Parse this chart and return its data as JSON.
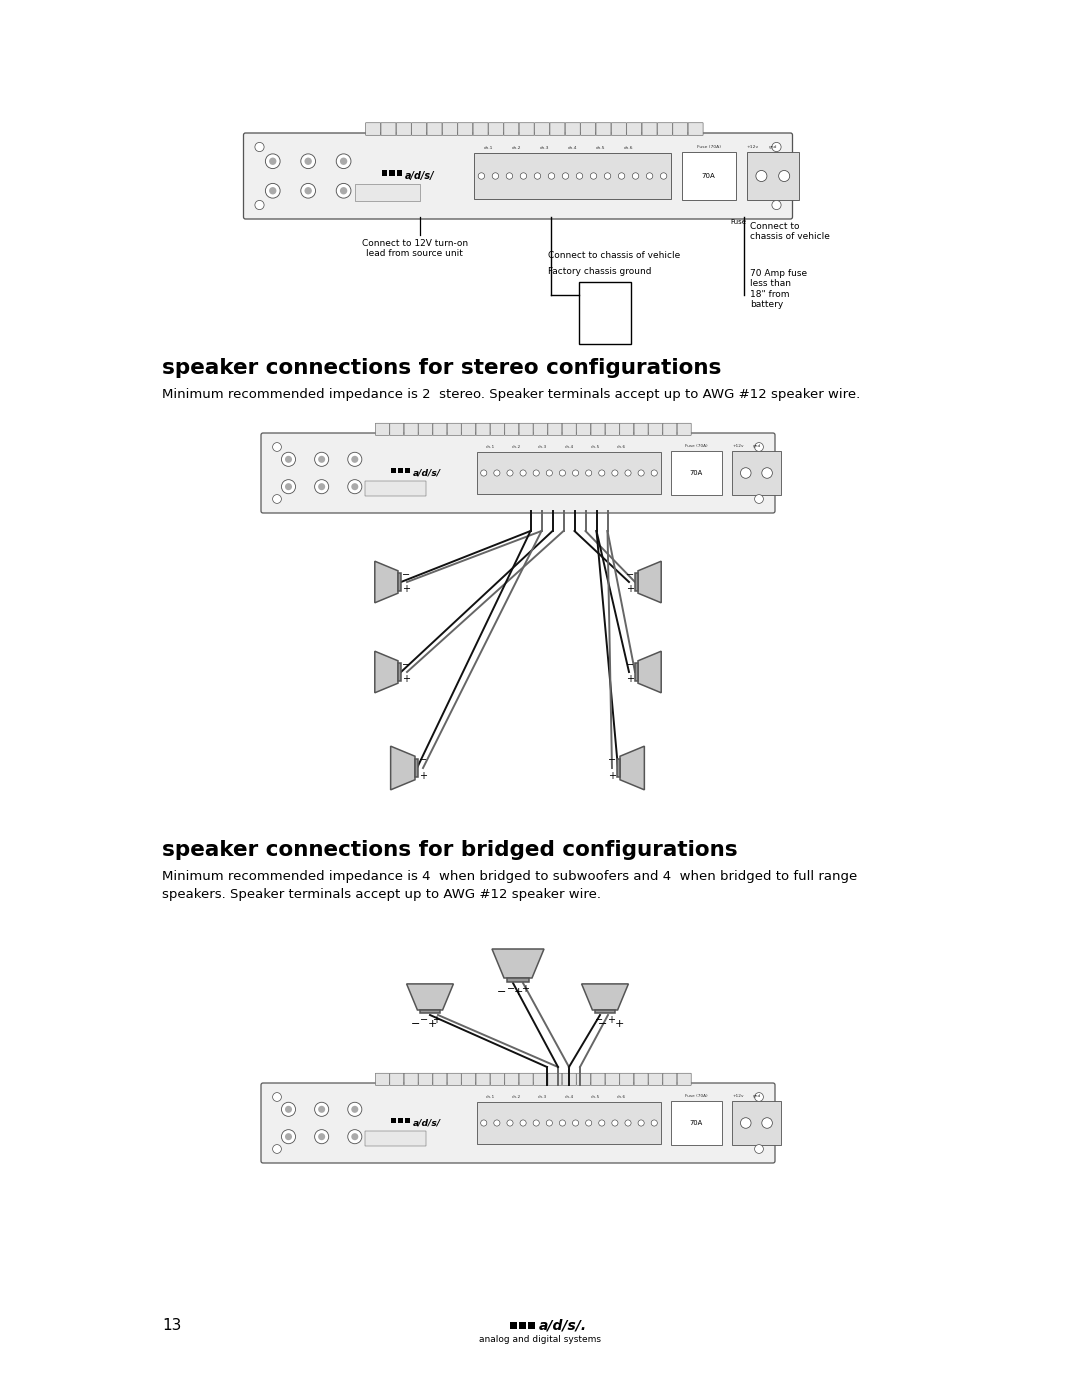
{
  "page_bg": "#ffffff",
  "title1": "speaker connections for stereo configurations",
  "body1": "Minimum recommended impedance is 2  stereo. Speaker terminals accept up to AWG #12 speaker wire.",
  "title2": "speaker connections for bridged configurations",
  "body2_line1": "Minimum recommended impedance is 4  when bridged to subwoofers and 4  when bridged to full range",
  "body2_line2": "speakers. Speaker terminals accept up to AWG #12 speaker wire.",
  "page_num": "13",
  "text_color": "#000000",
  "amp_fill": "#f0f0f0",
  "amp_stroke": "#555555",
  "wire_dark": "#222222",
  "wire_light": "#777777"
}
